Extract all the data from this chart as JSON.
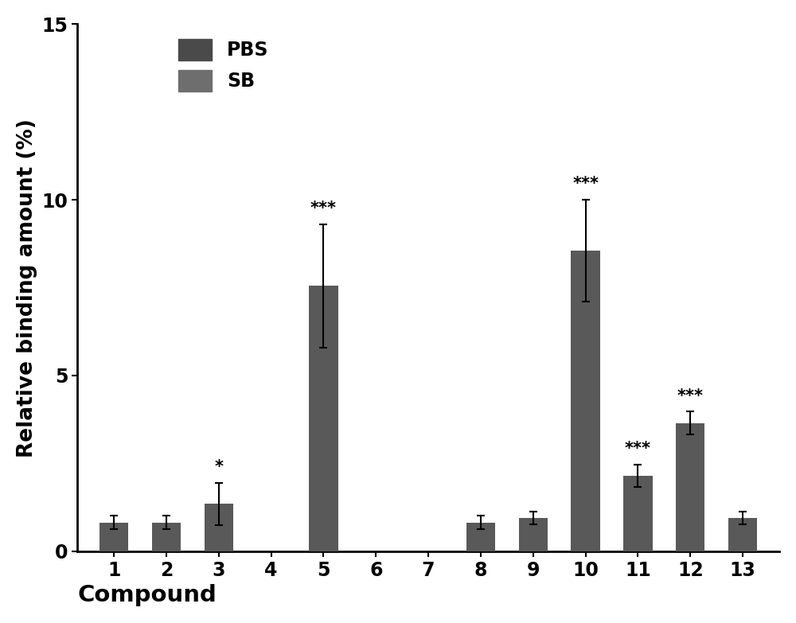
{
  "compounds": [
    1,
    2,
    3,
    4,
    5,
    6,
    7,
    8,
    9,
    10,
    11,
    12,
    13
  ],
  "pbs_values": [
    0.82,
    0.82,
    1.35,
    0.0,
    7.55,
    0.0,
    0.0,
    0.82,
    0.95,
    8.55,
    2.15,
    3.65,
    0.95
  ],
  "pbs_errors": [
    0.2,
    0.2,
    0.6,
    0.0,
    1.75,
    0.0,
    0.0,
    0.2,
    0.18,
    1.45,
    0.32,
    0.32,
    0.18
  ],
  "significance": [
    "",
    "",
    "*",
    "",
    "***",
    "",
    "",
    "",
    "",
    "***",
    "***",
    "***",
    ""
  ],
  "bar_color": "#595959",
  "bar_width": 0.55,
  "ylim": [
    0,
    15
  ],
  "yticks": [
    0,
    5,
    10,
    15
  ],
  "ylabel": "Relative binding amount (%)",
  "xlabel": "Compound",
  "legend_labels": [
    "PBS",
    "SB"
  ],
  "legend_colors": [
    "#4a4a4a",
    "#6e6e6e"
  ],
  "sig_fontsize": 15,
  "label_fontsize": 19,
  "tick_fontsize": 17,
  "xlabel_fontsize": 21,
  "legend_fontsize": 17
}
